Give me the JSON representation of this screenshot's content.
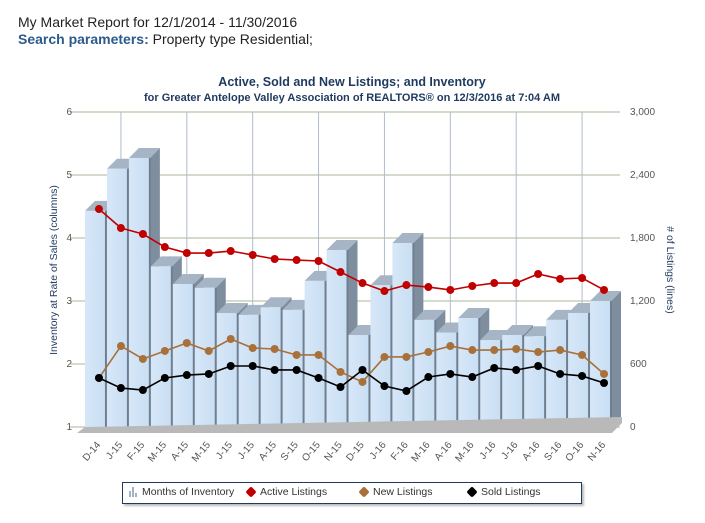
{
  "header": {
    "report_title": "My Market Report for 12/1/2014 - 11/30/2016",
    "search_label": "Search parameters:",
    "search_value": "Property type Residential;"
  },
  "chart_data": {
    "type": "bar",
    "title": "Active, Sold and New Listings; and Inventory",
    "subtitle": "for Greater Antelope Valley Association of REALTORS® on 12/3/2016 at 7:04 AM",
    "categories": [
      "D-14",
      "J-15",
      "F-15",
      "M-15",
      "A-15",
      "M-15",
      "J-15",
      "J-15",
      "A-15",
      "S-15",
      "O-15",
      "N-15",
      "D-15",
      "J-16",
      "F-16",
      "M-16",
      "A-16",
      "M-16",
      "J-16",
      "J-16",
      "A-16",
      "S-16",
      "O-16",
      "N-16"
    ],
    "y_left": {
      "label": "Inventory at Rate of Sales (columns)",
      "range": [
        1,
        6
      ],
      "ticks": [
        "1",
        "2",
        "3",
        "4",
        "5",
        "6"
      ]
    },
    "y_right": {
      "label": "# of Listings (lines)",
      "range": [
        0,
        3000
      ],
      "ticks": [
        "0",
        "600",
        "1,200",
        "1,800",
        "2,400",
        "3,000"
      ]
    },
    "grid": true,
    "legend_position": "bottom",
    "series": [
      {
        "name": "Months of Inventory",
        "kind": "column",
        "axis": "left",
        "color": "#cfe3f7",
        "values": [
          4.43,
          5.1,
          5.27,
          3.55,
          3.27,
          3.21,
          2.81,
          2.78,
          2.9,
          2.86,
          3.32,
          3.81,
          2.46,
          3.25,
          3.92,
          2.7,
          2.5,
          2.73,
          2.38,
          2.46,
          2.44,
          2.7,
          2.81,
          3.0
        ]
      },
      {
        "name": "Active Listings",
        "kind": "line",
        "axis": "right",
        "color": "#c00000",
        "values": [
          2076,
          1895,
          1838,
          1714,
          1657,
          1657,
          1676,
          1638,
          1600,
          1590,
          1581,
          1476,
          1371,
          1295,
          1352,
          1333,
          1305,
          1343,
          1371,
          1371,
          1457,
          1410,
          1419,
          1305
        ]
      },
      {
        "name": "New Listings",
        "kind": "line",
        "axis": "right",
        "color": "#a8703a",
        "values": [
          467,
          771,
          648,
          724,
          800,
          724,
          838,
          752,
          743,
          686,
          686,
          524,
          429,
          667,
          667,
          714,
          771,
          733,
          733,
          743,
          714,
          733,
          686,
          505
        ]
      },
      {
        "name": "Sold Listings",
        "kind": "line",
        "axis": "right",
        "color": "#000000",
        "values": [
          467,
          371,
          352,
          467,
          495,
          505,
          581,
          581,
          543,
          543,
          467,
          381,
          543,
          390,
          343,
          476,
          505,
          476,
          562,
          543,
          581,
          505,
          486,
          419
        ]
      }
    ]
  }
}
